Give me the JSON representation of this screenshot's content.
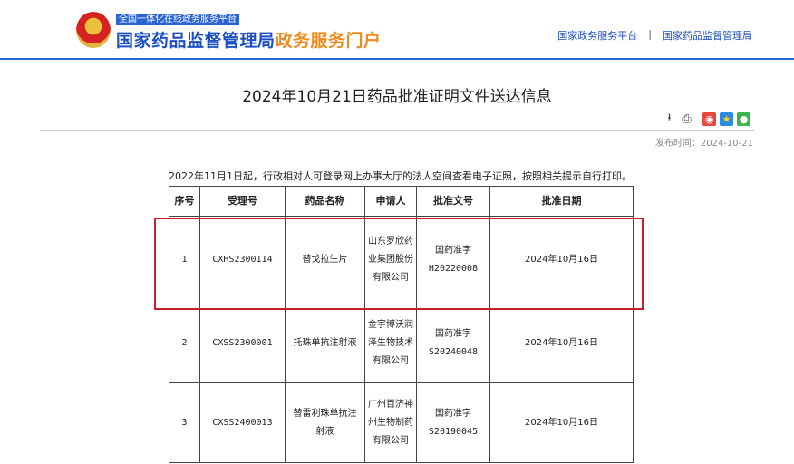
{
  "header": {
    "subtitle": "全国一体化在线政务服务平台",
    "brand_main": "国家药品监督管理局",
    "brand_accent": "政务服务门户",
    "links": [
      "国家政务服务平台",
      "国家药品监督管理局"
    ],
    "separator": "|"
  },
  "article": {
    "title": "2024年10月21日药品批准证明文件送达信息",
    "publish_date": "发布时间：2024-10-21",
    "note": "2022年11月1日起，行政相对人可登录网上办事大厅的法人空间查看电子证照，按照相关提示自行打印。"
  },
  "tools": [
    "download-icon",
    "print-icon",
    "weibo-icon",
    "qzone-icon",
    "wechat-icon"
  ],
  "table": {
    "headers": [
      "序号",
      "受理号",
      "药品名称",
      "申请人",
      "批准文号",
      "批准日期"
    ],
    "rows": [
      {
        "no": "1",
        "accept": "CXHS2300114",
        "drug": "替戈拉生片",
        "applicant": "山东罗欣药业集团股份有限公司",
        "approval_prefix": "国药准字",
        "approval_no": "H20220008",
        "date": "2024年10月16日"
      },
      {
        "no": "2",
        "accept": "CXSS2300001",
        "drug": "托珠单抗注射液",
        "applicant": "金宇博沃润泽生物技术有限公司",
        "approval_prefix": "国药准字",
        "approval_no": "S20240048",
        "date": "2024年10月16日"
      },
      {
        "no": "3",
        "accept": "CXSS2400013",
        "drug": "替雷利珠单抗注射液",
        "applicant": "广州百济神州生物制药有限公司",
        "approval_prefix": "国药准字",
        "approval_no": "S20190045",
        "date": "2024年10月16日"
      }
    ]
  },
  "colors": {
    "brand_blue": "#1d4fc4",
    "accent_orange": "#f08a1e",
    "highlight_red": "#c8202a"
  }
}
